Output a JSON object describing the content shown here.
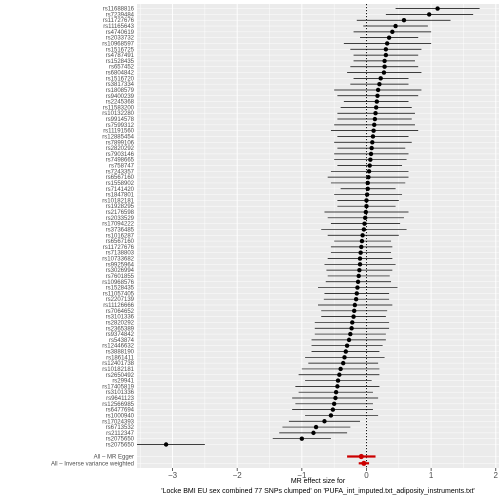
{
  "chart_data": {
    "type": "forest",
    "xlabel": "MR effect size for\n'Locke BMI EU sex combined 77 SNPs clumped' on 'PUFA_int_imputed.txt_adiposity_instruments.txt'",
    "xlim": [
      -3.55,
      2.05
    ],
    "x_ticks": [
      -3,
      -2,
      -1,
      0,
      1,
      2
    ],
    "reference_line": 0,
    "grid": true,
    "colors": {
      "panel": "#ebebeb",
      "grid": "#ffffff",
      "point": "#000000",
      "summary": "#cc0000",
      "interval": "#000000"
    },
    "snps": [
      {
        "label": "rs11688816",
        "b": 1.1,
        "lo": 0.45,
        "hi": 1.75
      },
      {
        "label": "rs7239484",
        "b": 0.97,
        "lo": 0.3,
        "hi": 1.65
      },
      {
        "label": "rs11727676",
        "b": 0.58,
        "lo": -0.15,
        "hi": 1.3
      },
      {
        "label": "rs11165643",
        "b": 0.45,
        "lo": -0.05,
        "hi": 0.95
      },
      {
        "label": "rs4740619",
        "b": 0.4,
        "lo": -0.2,
        "hi": 1.0
      },
      {
        "label": "rs2033732",
        "b": 0.35,
        "lo": -0.1,
        "hi": 0.8
      },
      {
        "label": "rs10968597",
        "b": 0.32,
        "lo": -0.35,
        "hi": 1.0
      },
      {
        "label": "rs1516725",
        "b": 0.3,
        "lo": -0.25,
        "hi": 0.85
      },
      {
        "label": "rs4787491",
        "b": 0.3,
        "lo": -0.2,
        "hi": 0.8
      },
      {
        "label": "rs1528435",
        "b": 0.28,
        "lo": -0.2,
        "hi": 0.75
      },
      {
        "label": "rs657452",
        "b": 0.28,
        "lo": -0.25,
        "hi": 0.8
      },
      {
        "label": "rs6804842",
        "b": 0.27,
        "lo": -0.3,
        "hi": 0.85
      },
      {
        "label": "rs1516720",
        "b": 0.22,
        "lo": -0.2,
        "hi": 0.65
      },
      {
        "label": "rs3817334",
        "b": 0.2,
        "lo": -0.25,
        "hi": 0.65
      },
      {
        "label": "rs1808579",
        "b": 0.18,
        "lo": -0.5,
        "hi": 0.85
      },
      {
        "label": "rs9400239",
        "b": 0.17,
        "lo": -0.45,
        "hi": 0.8
      },
      {
        "label": "rs2245368",
        "b": 0.16,
        "lo": -0.35,
        "hi": 0.65
      },
      {
        "label": "rs11583200",
        "b": 0.15,
        "lo": -0.4,
        "hi": 0.7
      },
      {
        "label": "rs10132280",
        "b": 0.14,
        "lo": -0.45,
        "hi": 0.75
      },
      {
        "label": "rs9914578",
        "b": 0.13,
        "lo": -0.45,
        "hi": 0.7
      },
      {
        "label": "rs7599312",
        "b": 0.12,
        "lo": -0.5,
        "hi": 0.75
      },
      {
        "label": "rs11191560",
        "b": 0.11,
        "lo": -0.55,
        "hi": 0.8
      },
      {
        "label": "rs12885454",
        "b": 0.1,
        "lo": -0.45,
        "hi": 0.65
      },
      {
        "label": "rs7899106",
        "b": 0.09,
        "lo": -0.5,
        "hi": 0.7
      },
      {
        "label": "rs2820292",
        "b": 0.08,
        "lo": -0.45,
        "hi": 0.6
      },
      {
        "label": "rs7903146",
        "b": 0.07,
        "lo": -0.5,
        "hi": 0.65
      },
      {
        "label": "rs7498665",
        "b": 0.06,
        "lo": -0.5,
        "hi": 0.62
      },
      {
        "label": "rs758747",
        "b": 0.05,
        "lo": -0.45,
        "hi": 0.55
      },
      {
        "label": "rs7243357",
        "b": 0.04,
        "lo": -0.55,
        "hi": 0.65
      },
      {
        "label": "rs6567160",
        "b": 0.03,
        "lo": -0.6,
        "hi": 0.65
      },
      {
        "label": "rs1558902",
        "b": 0.02,
        "lo": -0.55,
        "hi": 0.6
      },
      {
        "label": "rs7141420",
        "b": 0.02,
        "lo": -0.4,
        "hi": 0.45
      },
      {
        "label": "rs1847801",
        "b": 0.01,
        "lo": -0.5,
        "hi": 0.55
      },
      {
        "label": "rs10182181",
        "b": 0.0,
        "lo": -0.45,
        "hi": 0.5
      },
      {
        "label": "rs1928295",
        "b": 0.0,
        "lo": -0.45,
        "hi": 0.45
      },
      {
        "label": "rs2176598",
        "b": -0.01,
        "lo": -0.65,
        "hi": 0.65
      },
      {
        "label": "rs2033529",
        "b": -0.02,
        "lo": -0.6,
        "hi": 0.58
      },
      {
        "label": "rs17094222",
        "b": -0.03,
        "lo": -0.55,
        "hi": 0.52
      },
      {
        "label": "rs3736485",
        "b": -0.04,
        "lo": -0.7,
        "hi": 0.62
      },
      {
        "label": "rs1016287",
        "b": -0.06,
        "lo": -0.6,
        "hi": 0.5
      },
      {
        "label": "rs6567160",
        "b": -0.07,
        "lo": -0.5,
        "hi": 0.38
      },
      {
        "label": "rs11727676",
        "b": -0.08,
        "lo": -0.55,
        "hi": 0.4
      },
      {
        "label": "rs7138803",
        "b": -0.09,
        "lo": -0.55,
        "hi": 0.38
      },
      {
        "label": "rs10733682",
        "b": -0.1,
        "lo": -0.6,
        "hi": 0.4
      },
      {
        "label": "rs9925964",
        "b": -0.1,
        "lo": -0.65,
        "hi": 0.45
      },
      {
        "label": "rs3026994",
        "b": -0.11,
        "lo": -0.62,
        "hi": 0.4
      },
      {
        "label": "rs7601855",
        "b": -0.12,
        "lo": -0.6,
        "hi": 0.36
      },
      {
        "label": "rs10968576",
        "b": -0.13,
        "lo": -0.63,
        "hi": 0.38
      },
      {
        "label": "rs1528435",
        "b": -0.14,
        "lo": -0.75,
        "hi": 0.48
      },
      {
        "label": "rs11057405",
        "b": -0.15,
        "lo": -0.65,
        "hi": 0.35
      },
      {
        "label": "rs2207139",
        "b": -0.16,
        "lo": -0.66,
        "hi": 0.35
      },
      {
        "label": "rs11126666",
        "b": -0.18,
        "lo": -0.75,
        "hi": 0.4
      },
      {
        "label": "rs7064652",
        "b": -0.19,
        "lo": -0.7,
        "hi": 0.32
      },
      {
        "label": "rs3101336",
        "b": -0.2,
        "lo": -0.7,
        "hi": 0.3
      },
      {
        "label": "rs2820292",
        "b": -0.22,
        "lo": -0.8,
        "hi": 0.35
      },
      {
        "label": "rs2365389",
        "b": -0.23,
        "lo": -0.8,
        "hi": 0.35
      },
      {
        "label": "rs9374842",
        "b": -0.25,
        "lo": -0.8,
        "hi": 0.3
      },
      {
        "label": "rs543874",
        "b": -0.27,
        "lo": -0.85,
        "hi": 0.3
      },
      {
        "label": "rs12446632",
        "b": -0.3,
        "lo": -0.85,
        "hi": 0.25
      },
      {
        "label": "rs3888190",
        "b": -0.32,
        "lo": -0.85,
        "hi": 0.2
      },
      {
        "label": "rs1861411",
        "b": -0.34,
        "lo": -0.95,
        "hi": 0.28
      },
      {
        "label": "rs12401738",
        "b": -0.36,
        "lo": -0.9,
        "hi": 0.18
      },
      {
        "label": "rs10182181",
        "b": -0.4,
        "lo": -1.0,
        "hi": 0.2
      },
      {
        "label": "rs2650492",
        "b": -0.42,
        "lo": -1.05,
        "hi": 0.2
      },
      {
        "label": "rs29941",
        "b": -0.44,
        "lo": -0.95,
        "hi": 0.08
      },
      {
        "label": "rs17405819",
        "b": -0.45,
        "lo": -1.1,
        "hi": 0.2
      },
      {
        "label": "rs3101336",
        "b": -0.47,
        "lo": -1.05,
        "hi": 0.1
      },
      {
        "label": "rs9641123",
        "b": -0.48,
        "lo": -1.15,
        "hi": 0.18
      },
      {
        "label": "rs12566985",
        "b": -0.5,
        "lo": -1.1,
        "hi": 0.1
      },
      {
        "label": "rs6477694",
        "b": -0.52,
        "lo": -1.15,
        "hi": 0.1
      },
      {
        "label": "rs1000940",
        "b": -0.55,
        "lo": -0.95,
        "hi": 0.18
      },
      {
        "label": "rs17024393",
        "b": -0.65,
        "lo": -1.2,
        "hi": -0.1
      },
      {
        "label": "rs6713532",
        "b": -0.78,
        "lo": -1.3,
        "hi": -0.25
      },
      {
        "label": "rs2112347",
        "b": -0.82,
        "lo": -1.35,
        "hi": -0.3
      },
      {
        "label": "rs2075650",
        "b": -1.0,
        "lo": -1.45,
        "hi": -0.55
      },
      {
        "label": "rs2075650",
        "b": -3.1,
        "lo": -3.7,
        "hi": -2.5
      }
    ],
    "summary": [
      {
        "label": "All – MR Egger",
        "b": -0.08,
        "lo": -0.3,
        "hi": 0.14
      },
      {
        "label": "All – Inverse variance weighted",
        "b": -0.04,
        "lo": -0.12,
        "hi": 0.04
      }
    ]
  }
}
